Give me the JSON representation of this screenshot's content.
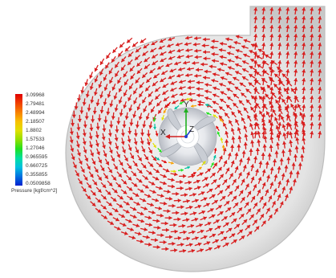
{
  "legend": {
    "values": [
      "3.09968",
      "2.79481",
      "2.48994",
      "2.18507",
      "1.8802",
      "1.57533",
      "1.27046",
      "0.965595",
      "0.660725",
      "0.355855",
      "0.0509858"
    ],
    "title": "Pressure [kgf/cm^2]",
    "colors": {
      "high": "#e00000",
      "mid": "#20e020",
      "low": "#0020d0"
    }
  },
  "triad": {
    "x_label": "X",
    "y_label": "Y",
    "z_label": "Z"
  },
  "scene": {
    "arrow_color": "#d81e1e",
    "casing_color": "#d9d9d9",
    "impeller_color": "#cfd3d8"
  }
}
